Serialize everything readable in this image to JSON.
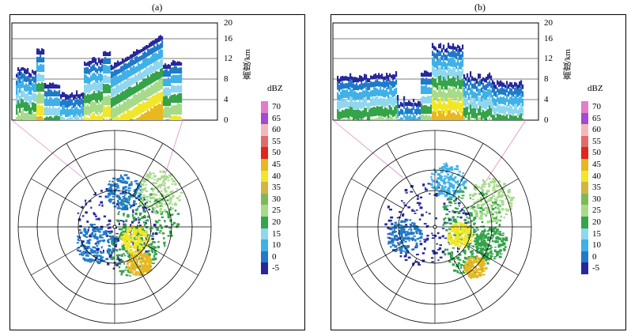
{
  "panels": [
    {
      "label": "(a)"
    },
    {
      "label": "(b)"
    }
  ],
  "height_axis": {
    "title": "高度/km",
    "ticks": [
      "20",
      "16",
      "12",
      "8",
      "4",
      "0"
    ]
  },
  "colorbar": {
    "title": "dBZ",
    "labels": [
      "70",
      "65",
      "60",
      "55",
      "50",
      "45",
      "40",
      "35",
      "30",
      "25",
      "20",
      "15",
      "10",
      "0",
      "-5"
    ],
    "colors": [
      "#e67cc8",
      "#a24bd1",
      "#f4b8b8",
      "#e36a6a",
      "#e0261e",
      "#e8b820",
      "#f1e72a",
      "#d3b640",
      "#7fb85a",
      "#a7db8a",
      "#34a34a",
      "#8fd6ef",
      "#3fb1e7",
      "#1f7bc9",
      "#26289c"
    ]
  }
}
